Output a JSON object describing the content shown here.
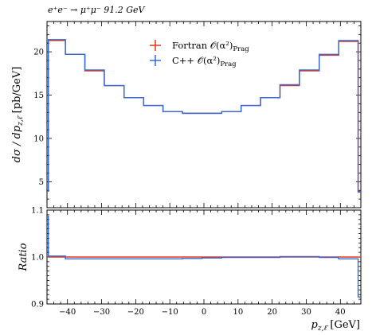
{
  "chart_data": [
    {
      "type": "line",
      "panel": "main",
      "title": "e⁺e⁻ → μ⁺μ⁻ 91.2 GeV",
      "xlabel": "p_z,ℓ̄ [GeV]",
      "ylabel": "dσ/dp_z,ℓ̄ [pb/GeV]",
      "xlim": [
        -46,
        46
      ],
      "ylim": [
        2,
        23.5
      ],
      "xticks": [
        -40,
        -30,
        -20,
        -10,
        0,
        10,
        20,
        30,
        40
      ],
      "yticks": [
        5,
        10,
        15,
        20
      ],
      "legend_position": "top-center",
      "bin_edges": [
        -46,
        -45.6,
        -40.6,
        -34.9,
        -29.2,
        -23.4,
        -17.7,
        -12.0,
        -6.3,
        -0.6,
        5.2,
        10.9,
        16.6,
        22.3,
        28.0,
        33.8,
        39.5,
        45.2,
        46
      ],
      "series": [
        {
          "name": "Fortran O(α²)Prag",
          "color": "#e8331a",
          "values": [
            3.9,
            21.3,
            19.7,
            17.8,
            16.1,
            14.7,
            13.8,
            13.1,
            12.9,
            12.9,
            13.1,
            13.8,
            14.7,
            16.1,
            17.8,
            19.6,
            21.2,
            3.9
          ]
        },
        {
          "name": "C++ O(α²)Prag",
          "color": "#2f6bdc",
          "values": [
            3.9,
            21.4,
            19.7,
            17.9,
            16.1,
            14.7,
            13.8,
            13.1,
            12.9,
            12.9,
            13.1,
            13.8,
            14.7,
            16.2,
            17.9,
            19.7,
            21.3,
            3.8
          ]
        }
      ]
    },
    {
      "type": "line",
      "panel": "ratio",
      "xlabel": "p_z,ℓ̄ [GeV]",
      "ylabel": "Ratio",
      "xlim": [
        -46,
        46
      ],
      "ylim": [
        0.9,
        1.1
      ],
      "yticks": [
        0.9,
        1.0,
        1.1
      ],
      "ytick_labels": [
        "0.9",
        "1.0",
        "1.1"
      ],
      "xticks": [
        -40,
        -30,
        -20,
        -10,
        0,
        10,
        20,
        30,
        40
      ],
      "bin_edges": [
        -46,
        -45.6,
        -40.6,
        -34.9,
        -29.2,
        -23.4,
        -17.7,
        -12.0,
        -6.3,
        -0.6,
        5.2,
        10.9,
        16.6,
        22.3,
        28.0,
        33.8,
        39.5,
        45.2,
        46
      ],
      "series": [
        {
          "name": "Fortran O(α²)Prag",
          "color": "#e8331a",
          "values": [
            1.0,
            1.0,
            1.0,
            1.0,
            1.0,
            1.0,
            1.0,
            1.0,
            1.0,
            1.0,
            1.0,
            1.0,
            1.0,
            1.0,
            1.0,
            1.0,
            1.0,
            1.0
          ]
        },
        {
          "name": "C++ O(α²)Prag",
          "color": "#2f6bdc",
          "values": [
            1.087,
            1.002,
            0.996,
            0.996,
            0.996,
            0.996,
            0.996,
            0.996,
            0.997,
            0.998,
            0.999,
            0.999,
            0.999,
            1.001,
            1.001,
            0.999,
            0.996,
            0.915
          ]
        }
      ]
    }
  ],
  "labels": {
    "process": "e⁺e⁻ → μ⁺μ⁻ 91.2 GeV",
    "legend_fortran": "Fortran 𝒪(α²)",
    "legend_cpp": "C++ 𝒪(α²)",
    "legend_sub": "Prag",
    "ylabel_main": "dσ / dp",
    "ylabel_main_sub": "z,ℓ̄",
    "ylabel_main_unit": "[pb/GeV]",
    "ylabel_ratio": "Ratio",
    "xlabel": "p",
    "xlabel_sub": "z,ℓ̄",
    "xlabel_unit": "[GeV]"
  }
}
